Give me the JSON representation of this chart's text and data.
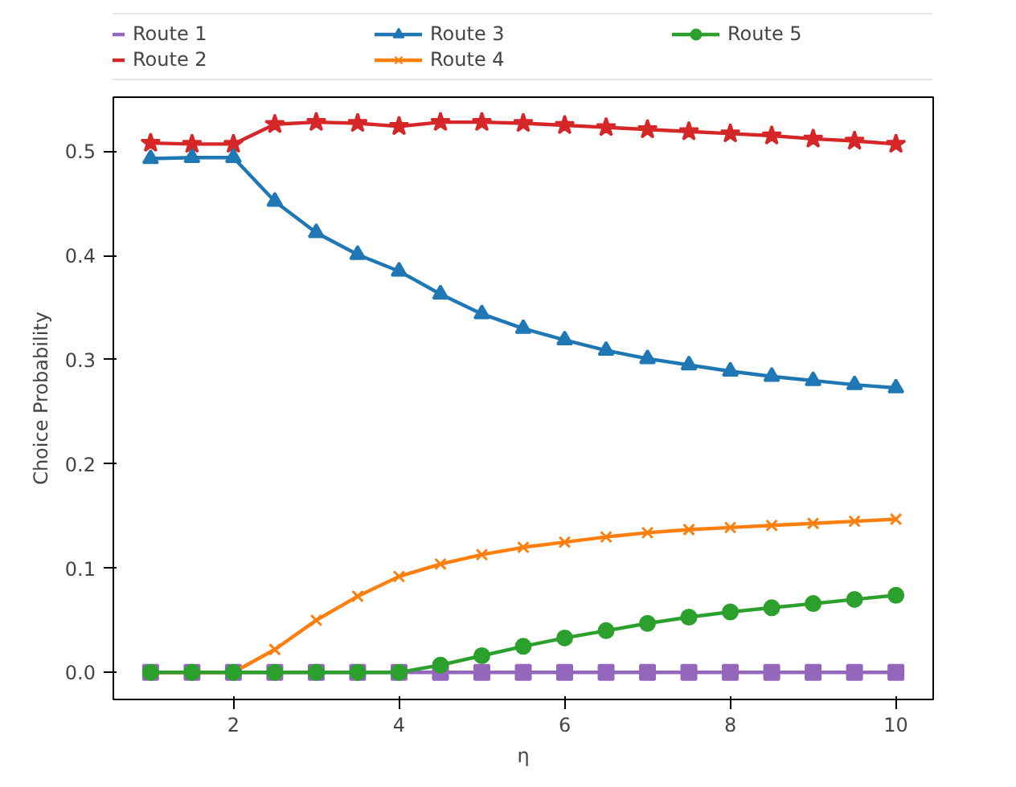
{
  "chart_data": {
    "type": "line",
    "xlabel": "η",
    "ylabel": "Choice Probability",
    "x": [
      1,
      1.5,
      2,
      2.5,
      3,
      3.5,
      4,
      4.5,
      5,
      5.5,
      6,
      6.5,
      7,
      7.5,
      8,
      8.5,
      9,
      9.5,
      10
    ],
    "series": [
      {
        "name": "Route 1",
        "color": "#9467bd",
        "marker": "square",
        "values": [
          0,
          0,
          0,
          0,
          0,
          0,
          0,
          0,
          0,
          0,
          0,
          0,
          0,
          0,
          0,
          0,
          0,
          0,
          0
        ]
      },
      {
        "name": "Route 2",
        "color": "#d62728",
        "marker": "star",
        "values": [
          0.508,
          0.507,
          0.507,
          0.526,
          0.528,
          0.527,
          0.524,
          0.528,
          0.528,
          0.527,
          0.525,
          0.523,
          0.521,
          0.519,
          0.517,
          0.515,
          0.512,
          0.51,
          0.507
        ]
      },
      {
        "name": "Route 3",
        "color": "#1f77b4",
        "marker": "triangle",
        "values": [
          0.493,
          0.494,
          0.494,
          0.452,
          0.422,
          0.401,
          0.385,
          0.363,
          0.344,
          0.33,
          0.319,
          0.309,
          0.301,
          0.295,
          0.289,
          0.284,
          0.28,
          0.276,
          0.273
        ]
      },
      {
        "name": "Route 4",
        "color": "#ff7f0e",
        "marker": "cross",
        "values": [
          0,
          0,
          0,
          0.022,
          0.05,
          0.073,
          0.092,
          0.104,
          0.113,
          0.12,
          0.125,
          0.13,
          0.134,
          0.137,
          0.139,
          0.141,
          0.143,
          0.145,
          0.147
        ]
      },
      {
        "name": "Route 5",
        "color": "#2ca02c",
        "marker": "circle",
        "values": [
          0,
          0,
          0,
          0,
          0,
          0,
          0,
          0.007,
          0.016,
          0.025,
          0.033,
          0.04,
          0.047,
          0.053,
          0.058,
          0.062,
          0.066,
          0.07,
          0.074
        ]
      }
    ],
    "xlim": [
      0.55,
      10.45
    ],
    "ylim": [
      -0.026,
      0.552
    ],
    "xticks": [
      2,
      4,
      6,
      8,
      10
    ],
    "yticks": [
      {
        "value": 0,
        "label": "0.0"
      },
      {
        "value": 0.1,
        "label": "0.1"
      },
      {
        "value": 0.2,
        "label": "0.2"
      },
      {
        "value": 0.3,
        "label": "0.3"
      },
      {
        "value": 0.4,
        "label": "0.4"
      },
      {
        "value": 0.5,
        "label": "0.5"
      }
    ],
    "grid": false,
    "legend": "top",
    "line_style": "solid"
  }
}
